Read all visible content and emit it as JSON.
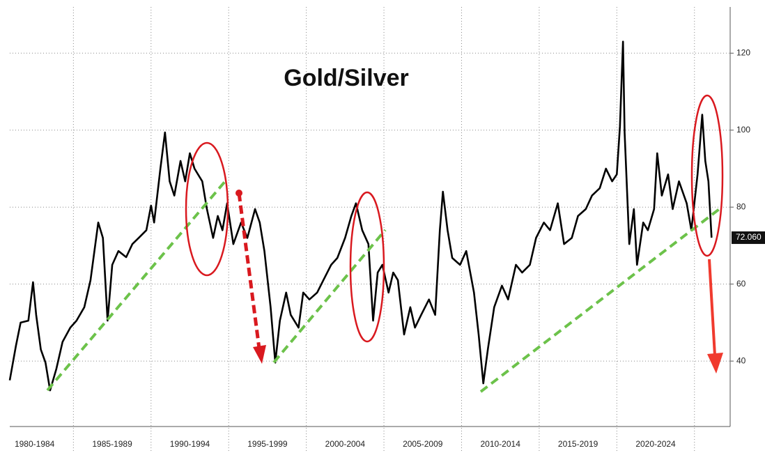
{
  "chart_data": {
    "type": "line",
    "title": "Gold/Silver",
    "x": [
      1980.9,
      1981.3,
      1981.6,
      1982.1,
      1982.4,
      1982.6,
      1982.9,
      1983.2,
      1983.5,
      1983.9,
      1984.3,
      1984.8,
      1985.2,
      1985.7,
      1986.1,
      1986.6,
      1986.9,
      1987.2,
      1987.5,
      1987.9,
      1988.4,
      1988.8,
      1989.2,
      1989.7,
      1990.0,
      1990.2,
      1990.6,
      1990.9,
      1991.2,
      1991.5,
      1991.9,
      1992.2,
      1992.5,
      1992.8,
      1993.3,
      1993.6,
      1994.0,
      1994.3,
      1994.6,
      1994.9,
      1995.3,
      1995.8,
      1996.2,
      1996.7,
      1997.0,
      1997.3,
      1997.7,
      1998.0,
      1998.3,
      1998.7,
      1999.0,
      1999.5,
      1999.8,
      2000.2,
      2000.7,
      2001.1,
      2001.6,
      2002.0,
      2002.5,
      2002.9,
      2003.2,
      2003.6,
      2004.0,
      2004.3,
      2004.6,
      2004.9,
      2005.3,
      2005.6,
      2005.9,
      2006.3,
      2006.7,
      2007.0,
      2007.4,
      2007.9,
      2008.3,
      2008.6,
      2008.8,
      2009.1,
      2009.4,
      2009.9,
      2010.3,
      2010.8,
      2011.1,
      2011.4,
      2011.7,
      2012.1,
      2012.6,
      2013.0,
      2013.5,
      2013.9,
      2014.4,
      2014.8,
      2015.3,
      2015.7,
      2016.2,
      2016.6,
      2017.1,
      2017.5,
      2018.0,
      2018.4,
      2018.9,
      2019.3,
      2019.7,
      2020.0,
      2020.2,
      2020.4,
      2020.5,
      2020.8,
      2021.1,
      2021.3,
      2021.7,
      2022.0,
      2022.4,
      2022.6,
      2022.9,
      2023.3,
      2023.6,
      2024.0,
      2024.5,
      2024.8,
      2025.2,
      2025.5,
      2025.7,
      2025.9,
      2026.1
    ],
    "values": [
      35,
      44,
      50,
      50.5,
      60.5,
      52,
      43,
      39.6,
      32.4,
      38,
      45,
      48.7,
      50.5,
      54,
      61,
      76,
      72,
      50.5,
      65,
      68.6,
      67,
      70.4,
      72,
      74,
      80.4,
      76,
      90,
      99.4,
      86.7,
      83,
      92,
      86.7,
      94,
      90,
      86.7,
      79.5,
      72,
      77.7,
      74,
      81,
      70.4,
      76,
      72,
      79.5,
      76,
      68.6,
      54,
      39.6,
      50.5,
      57.8,
      52,
      48.7,
      57.8,
      56,
      57.8,
      61,
      65,
      66.8,
      72,
      77.7,
      81,
      74,
      70.4,
      50.5,
      63,
      65,
      57.8,
      63,
      61,
      46.9,
      54,
      48.7,
      52,
      56,
      52,
      74,
      84,
      74,
      66.8,
      65,
      68.6,
      57.8,
      46.9,
      34.2,
      43.3,
      54,
      59.6,
      56,
      65,
      63,
      65,
      72,
      76,
      74,
      81,
      70.4,
      72,
      77.7,
      79.5,
      83,
      84.9,
      90,
      86.7,
      88.5,
      101,
      123,
      99.4,
      70.4,
      79.5,
      65,
      76,
      74,
      79.5,
      94,
      83,
      88.5,
      79.5,
      86.7,
      81,
      74,
      88.5,
      104,
      92,
      86.7,
      72.06
    ],
    "color": "#000000",
    "last_label": "72.060",
    "xlim": [
      1980.9,
      2027.3
    ],
    "ylim": [
      23,
      132
    ],
    "yticks": [
      40,
      60,
      80,
      100,
      120
    ],
    "xgrid": [
      1985,
      1990,
      1995,
      2000,
      2005,
      2010,
      2015,
      2020,
      2025
    ],
    "xticks": [
      {
        "value": 1980,
        "label": "1980-1984"
      },
      {
        "value": 1985,
        "label": "1985-1989"
      },
      {
        "value": 1990,
        "label": "1990-1994"
      },
      {
        "value": 1995,
        "label": "1995-1999"
      },
      {
        "value": 2000,
        "label": "2000-2004"
      },
      {
        "value": 2005,
        "label": "2005-2009"
      },
      {
        "value": 2010,
        "label": "2010-2014"
      },
      {
        "value": 2015,
        "label": "2015-2019"
      },
      {
        "value": 2020,
        "label": "2020-2024"
      }
    ],
    "grid": true
  }
}
